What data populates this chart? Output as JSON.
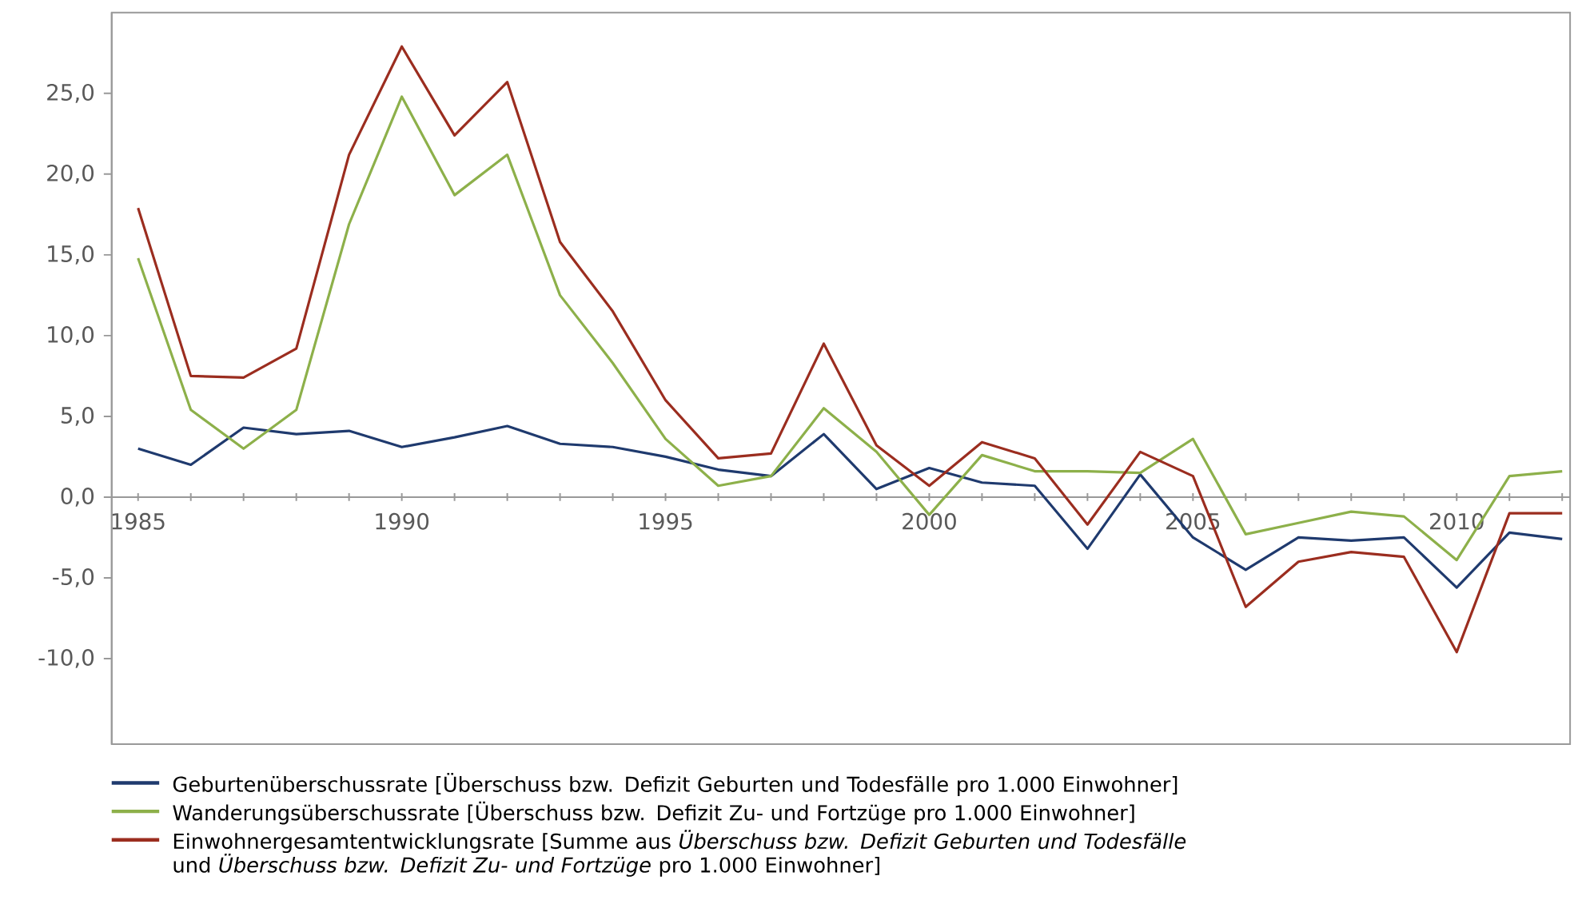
{
  "chart_data": {
    "type": "line",
    "x": [
      1985,
      1986,
      1987,
      1988,
      1989,
      1990,
      1991,
      1992,
      1993,
      1994,
      1995,
      1996,
      1997,
      1998,
      1999,
      2000,
      2001,
      2002,
      2003,
      2004,
      2005,
      2006,
      2007,
      2008,
      2009,
      2010,
      2011,
      2012
    ],
    "series": [
      {
        "name": "Geburtenüberschussrate [Überschuss bzw. Defizit Geburten und Todesfälle pro 1.000 Einwohner]",
        "color": "#1f3a6e",
        "values": [
          3.0,
          2.0,
          4.3,
          3.9,
          4.1,
          3.1,
          3.7,
          4.4,
          3.3,
          3.1,
          2.5,
          1.7,
          1.3,
          3.9,
          0.5,
          1.8,
          0.9,
          0.7,
          -3.2,
          1.4,
          -2.5,
          -4.5,
          -2.5,
          -2.7,
          -2.5,
          -5.6,
          -2.2,
          -2.6
        ]
      },
      {
        "name": "Wanderungsüberschussrate [Überschuss bzw. Defizit Zu- und Fortzüge pro 1.000 Einwohner]",
        "color": "#8db04a",
        "values": [
          14.8,
          5.4,
          3.0,
          5.4,
          16.9,
          24.8,
          18.7,
          21.2,
          12.5,
          8.3,
          3.6,
          0.7,
          1.3,
          5.5,
          2.8,
          -1.1,
          2.6,
          1.6,
          1.6,
          1.5,
          3.6,
          -2.3,
          -1.6,
          -0.9,
          -1.2,
          -3.9,
          1.3,
          1.6
        ]
      },
      {
        "name": "Einwohnergesamtentwicklungsrate [Summe aus *Überschuss bzw. Defizit Geburten und Todesfälle* und *Überschuss bzw. Defizit Zu- und Fortzüge* pro 1.000 Einwohner]",
        "color": "#9b2d1f",
        "values": [
          17.9,
          7.5,
          7.4,
          9.2,
          21.2,
          27.9,
          22.4,
          25.7,
          15.8,
          11.5,
          6.0,
          2.4,
          2.7,
          9.5,
          3.2,
          0.7,
          3.4,
          2.4,
          -1.7,
          2.8,
          1.3,
          -6.8,
          -4.0,
          -3.4,
          -3.7,
          -9.6,
          -1.0,
          -1.0
        ]
      }
    ],
    "xlim": [
      1984.5,
      2012.15
    ],
    "xticks": [
      1985,
      {
        "value": 1986,
        "label": null
      },
      {
        "value": 1987,
        "label": null
      },
      {
        "value": 1988,
        "label": null
      },
      {
        "value": 1989,
        "label": null
      },
      1990,
      {
        "value": 1991,
        "label": null
      },
      {
        "value": 1992,
        "label": null
      },
      {
        "value": 1993,
        "label": null
      },
      {
        "value": 1994,
        "label": null
      },
      1995,
      {
        "value": 1996,
        "label": null
      },
      {
        "value": 1997,
        "label": null
      },
      {
        "value": 1998,
        "label": null
      },
      {
        "value": 1999,
        "label": null
      },
      2000,
      {
        "value": 2001,
        "label": null
      },
      {
        "value": 2002,
        "label": null
      },
      {
        "value": 2003,
        "label": null
      },
      {
        "value": 2004,
        "label": null
      },
      2005,
      {
        "value": 2006,
        "label": null
      },
      {
        "value": 2007,
        "label": null
      },
      {
        "value": 2008,
        "label": null
      },
      {
        "value": 2009,
        "label": null
      },
      2010,
      {
        "value": 2011,
        "label": null
      },
      {
        "value": 2012,
        "label": null
      }
    ],
    "ylim": [
      -15.3,
      30
    ],
    "yticks": [
      {
        "value": -10,
        "label": "-10,0"
      },
      {
        "value": -5,
        "label": "-5,0"
      },
      {
        "value": 0,
        "label": "0,0"
      },
      {
        "value": 5,
        "label": "5,0"
      },
      {
        "value": 10,
        "label": "10,0"
      },
      {
        "value": 15,
        "label": "15,0"
      },
      {
        "value": 20,
        "label": "20,0"
      },
      {
        "value": 25,
        "label": "25,0"
      }
    ],
    "legend": "bottom",
    "marker": "none",
    "line_style": "solid"
  }
}
